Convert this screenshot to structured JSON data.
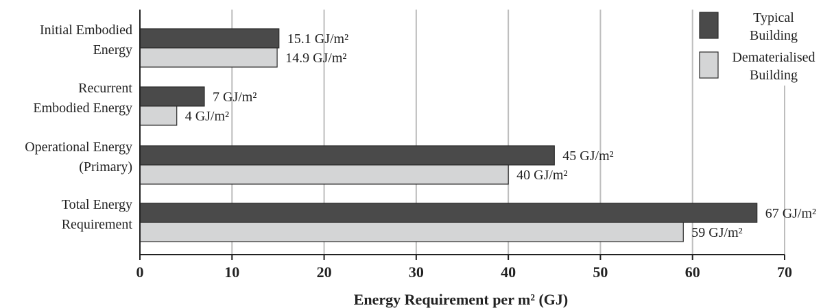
{
  "chart_data": {
    "type": "bar",
    "orientation": "horizontal",
    "xlabel": "Energy Requirement per m² (GJ)",
    "xlim": [
      0,
      70
    ],
    "xticks": [
      0,
      10,
      20,
      30,
      40,
      50,
      60,
      70
    ],
    "grid": "vertical",
    "legend_position": "top-right",
    "categories": [
      [
        "Initial Embodied",
        "Energy"
      ],
      [
        "Recurrent",
        "Embodied Energy"
      ],
      [
        "Operational Energy",
        "(Primary)"
      ],
      [
        "Total Energy",
        "Requirement"
      ]
    ],
    "series": [
      {
        "name": [
          "Typical",
          "Building"
        ],
        "color": "#4a4a4a",
        "values": [
          15.1,
          7,
          45,
          67
        ],
        "labels": [
          "15.1 GJ/m²",
          "7 GJ/m²",
          "45 GJ/m²",
          "67 GJ/m²"
        ]
      },
      {
        "name": [
          "Dematerialised",
          "Building"
        ],
        "color": "#d4d5d6",
        "values": [
          14.9,
          4,
          40,
          59
        ],
        "labels": [
          "14.9 GJ/m²",
          "4 GJ/m²",
          "40 GJ/m²",
          "59 GJ/m²"
        ]
      }
    ]
  }
}
